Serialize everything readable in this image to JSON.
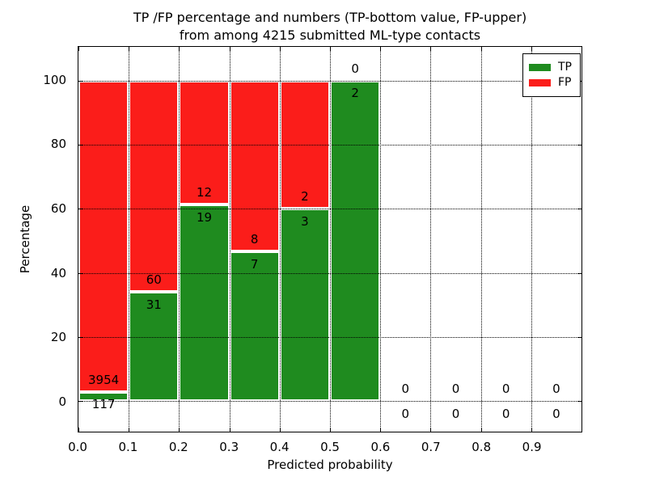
{
  "title": {
    "line1": "TP /FP percentage and numbers (TP-bottom value, FP-upper)",
    "line2": "from among 4215 submitted ML-type contacts"
  },
  "chart_data": {
    "type": "bar",
    "stacked": true,
    "percentage_stacked": true,
    "title": "TP /FP percentage and numbers (TP-bottom value, FP-upper)\nfrom among 4215 submitted ML-type contacts",
    "xlabel": "Predicted probability",
    "ylabel": "Percentage",
    "xlim": [
      0.0,
      1.0
    ],
    "ylim": [
      -9.5,
      110.5
    ],
    "bin_width": 0.1,
    "grid": "dotted",
    "xtick_labels": [
      "0.0",
      "0.1",
      "0.2",
      "0.3",
      "0.4",
      "0.5",
      "0.6",
      "0.7",
      "0.8",
      "0.9"
    ],
    "ytick_values": [
      0,
      20,
      40,
      60,
      80,
      100
    ],
    "categories": [
      "0.0-0.1",
      "0.1-0.2",
      "0.2-0.3",
      "0.3-0.4",
      "0.4-0.5",
      "0.5-0.6",
      "0.6-0.7",
      "0.7-0.8",
      "0.8-0.9",
      "0.9-1.0"
    ],
    "series": [
      {
        "name": "TP",
        "color": "#1f8b1f",
        "counts": [
          117,
          31,
          19,
          7,
          3,
          2,
          0,
          0,
          0,
          0
        ]
      },
      {
        "name": "FP",
        "color": "#fb1d1a",
        "counts": [
          3954,
          60,
          12,
          8,
          2,
          0,
          0,
          0,
          0,
          0
        ]
      }
    ],
    "tp_percent_heights": [
      2.87,
      34.07,
      61.29,
      46.67,
      60.0,
      100.0,
      0,
      0,
      0,
      0
    ],
    "legend": {
      "position": "upper-right",
      "entries": [
        "TP",
        "FP"
      ]
    }
  },
  "colors": {
    "tp": "#1f8b1f",
    "fp": "#fb1d1a",
    "background": "#ffffff",
    "text": "#000000",
    "grid": "#000000"
  }
}
